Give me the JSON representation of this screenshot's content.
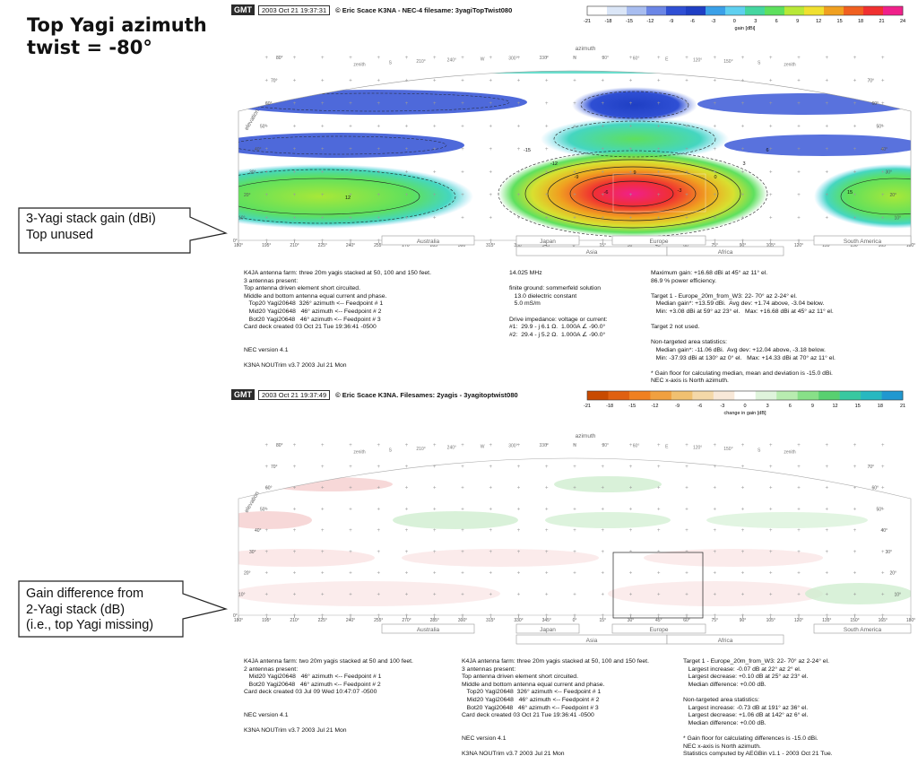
{
  "slide": {
    "title": "Top Yagi azimuth\ntwist = -80°",
    "callout_1": "3-Yagi stack gain (dBi)\nTop unused",
    "callout_2": "Gain difference from\n2-Yagi stack (dB)\n(i.e., top Yagi missing)"
  },
  "chart_data": [
    {
      "type": "heatmap",
      "header": {
        "logo": "GMT",
        "timestamp": "2003 Oct 21 19:37:31",
        "credit": "© Eric Scace K3NA - NEC-4 filesame: 3yagiTopTwist080"
      },
      "colorbar": {
        "ticks": [
          "-21",
          "-18",
          "-15",
          "-12",
          "-9",
          "-6",
          "-3",
          "0",
          "3",
          "6",
          "9",
          "12",
          "15",
          "18",
          "21",
          "24"
        ],
        "label": "gain [dBi]",
        "colors": [
          "#ffffff",
          "#dbe6f7",
          "#a8bdf0",
          "#6b86e6",
          "#2f4fd4",
          "#1f3fc4",
          "#3aa0e8",
          "#5fd0f0",
          "#45d6a0",
          "#5ee05e",
          "#b8e838",
          "#f0e030",
          "#f0a020",
          "#f06020",
          "#f03030",
          "#f0208a"
        ]
      },
      "xlabel": "azimuth",
      "ylabel": "elevation",
      "x_ticks": [
        "180°",
        "195°",
        "210°",
        "225°",
        "240°",
        "255°",
        "270°",
        "285°",
        "300°",
        "315°",
        "330°",
        "345°",
        "0°",
        "15°",
        "30°",
        "45°",
        "60°",
        "75°",
        "90°",
        "105°",
        "120°",
        "135°",
        "150°",
        "165°",
        "180°"
      ],
      "y_ticks": [
        "0°",
        "10°",
        "20°",
        "30°",
        "40°",
        "50°",
        "60°",
        "70°",
        "80°"
      ],
      "top_arc_labels": [
        "zenith",
        "S",
        "210°",
        "240°",
        "W",
        "300°",
        "330°",
        "N",
        "30°",
        "60°",
        "E",
        "120°",
        "150°",
        "S",
        "zenith"
      ],
      "regions_top": [
        "Australia",
        "Japan",
        "Europe",
        "South America"
      ],
      "regions_bottom": [
        "Asia",
        "Africa"
      ],
      "contour_levels": [
        -15,
        -12,
        -9,
        -6,
        -3,
        0,
        3,
        6,
        9,
        12,
        15
      ],
      "notes": {
        "left": "K4JA antenna farm: three 20m yagis stacked at 50, 100 and 150 feet.\n3 antennas present:\nTop antenna driven element short circuited.\nMiddle and bottom antenna equal current and phase.\n   Top20 Yagi20648  326° azimuth <-- Feedpoint # 1\n   Mid20 Yagi20648   46° azimuth <-- Feedpoint # 2\n   Bot20 Yagi20648   46° azimuth <-- Feedpoint # 3\nCard deck created 03 Oct 21 Tue 19:36:41 -0500\n\n\nNEC version 4.1\n\nK3NA NOUTrim v3.7 2003 Jul 21 Mon",
        "middle": "14.025 MHz\n\nfinite ground: sommerfeld solution\n   13.0 dielectric constant\n   5.0 mS/m\n\nDrive impedance: voltage or current:\n#1:  29.9 - j 6.1 Ω.  1.000A ∠ -90.0°\n#2:  29.4 - j 5.2 Ω.  1.000A ∠ -90.0°",
        "right": "Maximum gain: +16.68 dBi at 45° az 11° el.\n86.9 % power efficiency.\n\nTarget 1 - Europe_20m_from_W3: 22- 70° az 2-24° el.\n   Median gain*: +13.59 dBi.  Avg dev: +1.74 above, -3.04 below.\n   Min: +3.08 dBi at 59° az 23° el.   Max: +16.68 dBi at 45° az 11° el.\n\nTarget 2 not used.\n\nNon-targeted area statistics:\n   Median gain*: -11.06 dBi.  Avg dev: +12.04 above, -3.18 below.\n   Min: -37.93 dBi at 130° az 0° el.   Max: +14.33 dBi at 70° az 11° el.\n\n* Gain floor for calculating median, mean and deviation is -15.0 dBi.\nNEC x-axis is North azimuth."
      }
    },
    {
      "type": "heatmap",
      "header": {
        "logo": "GMT",
        "timestamp": "2003 Oct 21 19:37:49",
        "credit": "© Eric Scace K3NA.  Filesames: 2yagis - 3yagitoptwist080"
      },
      "colorbar": {
        "ticks": [
          "-21",
          "-18",
          "-15",
          "-12",
          "-9",
          "-6",
          "-3",
          "0",
          "3",
          "6",
          "9",
          "12",
          "15",
          "18",
          "21"
        ],
        "label": "change in gain [dB]",
        "colors": [
          "#c84a00",
          "#e06010",
          "#f08020",
          "#f0a040",
          "#f0c070",
          "#f4d8a8",
          "#f8e8d8",
          "#ffffff",
          "#dff4dc",
          "#b8ecb0",
          "#88e088",
          "#58d070",
          "#38c8a0",
          "#28b8c0",
          "#2098d0"
        ]
      },
      "xlabel": "azimuth",
      "ylabel": "elevation",
      "notes": {
        "left": "K4JA antenna farm: two 20m yagis stacked at 50 and 100 feet.\n2 antennas present:\n   Mid20 Yagi20648   46° azimuth <-- Feedpoint # 1\n   Bot20 Yagi20648   46° azimuth <-- Feedpoint # 2\nCard deck created 03 Jul 09 Wed 10:47:07 -0500\n\n\nNEC version 4.1\n\nK3NA NOUTrim v3.7 2003 Jul 21 Mon",
        "middle": "K4JA antenna farm: three 20m yagis stacked at 50, 100 and 150 feet.\n3 antennas present:\nTop antenna driven element short circuited.\nMiddle and bottom antenna equal current and phase.\n   Top20 Yagi20648  326° azimuth <-- Feedpoint # 1\n   Mid20 Yagi20648   46° azimuth <-- Feedpoint # 2\n   Bot20 Yagi20648   46° azimuth <-- Feedpoint # 3\nCard deck created 03 Oct 21 Tue 19:36:41 -0500\n\n\nNEC version 4.1\n\nK3NA NOUTrim v3.7 2003 Jul 21 Mon",
        "right": "Target 1 - Europe_20m_from_W3: 22- 70° az 2-24° el.\n   Largest increase: -0.07 dB at 22° az 2° el.\n   Largest decrease: +0.10 dB at 25° az 23° el.\n   Median difference: +0.00 dB.\n\nNon-targeted area statistics:\n   Largest increase: -0.73 dB at 191° az 36° el.\n   Largest decrease: +1.06 dB at 142° az 6° el.\n   Median difference: +0.00 dB.\n\n* Gain floor for calculating differences is -15.0 dBi.\nNEC x-axis is North azimuth.\nStatistics computed by AEGBin v1.1 - 2003 Oct 21 Tue."
      }
    }
  ]
}
